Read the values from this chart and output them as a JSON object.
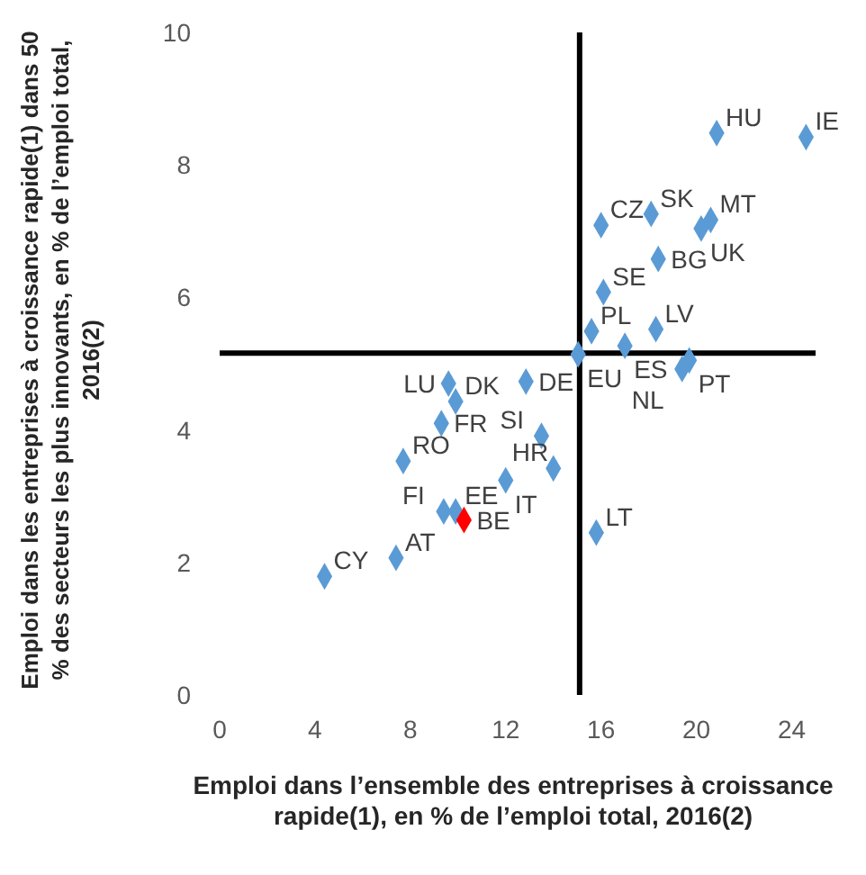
{
  "chart_data": {
    "type": "scatter",
    "xlabel": "Emploi dans l’ensemble des entreprises à croissance rapide(1), en % de l’emploi total, 2016(2)",
    "ylabel": "Emploi dans les entreprises à croissance rapide(1) dans 50 % des secteurs les plus innovants, en % de l’emploi total, 2016(2)",
    "series": [
      {
        "name": "HU",
        "color": "#5b9bd5",
        "x": [
          20.85
        ],
        "values": [
          8.48
        ]
      },
      {
        "name": "IE",
        "color": "#5b9bd5",
        "x": [
          24.6
        ],
        "values": [
          8.42
        ]
      },
      {
        "name": "CZ",
        "color": "#5b9bd5",
        "x": [
          16.0
        ],
        "values": [
          7.09
        ]
      },
      {
        "name": "SK",
        "color": "#5b9bd5",
        "x": [
          18.1
        ],
        "values": [
          7.26
        ]
      },
      {
        "name": "MT",
        "color": "#5b9bd5",
        "x": [
          20.6
        ],
        "values": [
          7.17
        ]
      },
      {
        "name": "UK",
        "color": "#5b9bd5",
        "x": [
          20.2
        ],
        "values": [
          7.04
        ]
      },
      {
        "name": "BG",
        "color": "#5b9bd5",
        "x": [
          18.4
        ],
        "values": [
          6.58
        ]
      },
      {
        "name": "SE",
        "color": "#5b9bd5",
        "x": [
          16.1
        ],
        "values": [
          6.08
        ]
      },
      {
        "name": "LV",
        "color": "#5b9bd5",
        "x": [
          18.3
        ],
        "values": [
          5.52
        ]
      },
      {
        "name": "PL",
        "color": "#5b9bd5",
        "x": [
          15.6
        ],
        "values": [
          5.49
        ]
      },
      {
        "name": "EU",
        "color": "#5b9bd5",
        "x": [
          15.04
        ],
        "values": [
          5.14
        ]
      },
      {
        "name": "ES",
        "color": "#5b9bd5",
        "x": [
          17.0
        ],
        "values": [
          5.27
        ]
      },
      {
        "name": "PT",
        "color": "#5b9bd5",
        "x": [
          19.7
        ],
        "values": [
          5.05
        ]
      },
      {
        "name": "NL",
        "color": "#5b9bd5",
        "x": [
          19.4
        ],
        "values": [
          4.92
        ]
      },
      {
        "name": "LU",
        "color": "#5b9bd5",
        "x": [
          9.6
        ],
        "values": [
          4.7
        ]
      },
      {
        "name": "DE",
        "color": "#5b9bd5",
        "x": [
          12.85
        ],
        "values": [
          4.73
        ]
      },
      {
        "name": "FR",
        "color": "#5b9bd5",
        "x": [
          9.3
        ],
        "values": [
          4.1
        ]
      },
      {
        "name": "DK",
        "color": "#5b9bd5",
        "x": [
          9.9
        ],
        "values": [
          4.43
        ]
      },
      {
        "name": "RO",
        "color": "#5b9bd5",
        "x": [
          7.7
        ],
        "values": [
          3.53
        ]
      },
      {
        "name": "SI",
        "color": "#5b9bd5",
        "x": [
          13.5
        ],
        "values": [
          3.91
        ]
      },
      {
        "name": "IT",
        "color": "#5b9bd5",
        "x": [
          12.0
        ],
        "values": [
          3.24
        ]
      },
      {
        "name": "HR",
        "color": "#5b9bd5",
        "x": [
          14.0
        ],
        "values": [
          3.42
        ]
      },
      {
        "name": "FI",
        "color": "#5b9bd5",
        "x": [
          9.4
        ],
        "values": [
          2.77
        ]
      },
      {
        "name": "EE",
        "color": "#5b9bd5",
        "x": [
          9.9
        ],
        "values": [
          2.77
        ]
      },
      {
        "name": "BE",
        "color": "#ff0000",
        "x": [
          10.25
        ],
        "values": [
          2.64
        ]
      },
      {
        "name": "LT",
        "color": "#5b9bd5",
        "x": [
          15.8
        ],
        "values": [
          2.45
        ]
      },
      {
        "name": "AT",
        "color": "#5b9bd5",
        "x": [
          7.4
        ],
        "values": [
          2.07
        ]
      },
      {
        "name": "CY",
        "color": "#5b9bd5",
        "x": [
          4.4
        ],
        "values": [
          1.79
        ]
      }
    ],
    "marker": "diamond",
    "xlim": [
      0,
      25
    ],
    "xticks": [
      0,
      4,
      8,
      12,
      16,
      20,
      24
    ],
    "ylim": [
      0,
      10
    ],
    "yticks": [
      0,
      2,
      4,
      6,
      8,
      10
    ],
    "ref_lines": [
      {
        "axis": "x",
        "value": 15.1,
        "color": "#000000"
      },
      {
        "axis": "y",
        "value": 5.16,
        "color": "#000000"
      }
    ],
    "grid": false
  }
}
